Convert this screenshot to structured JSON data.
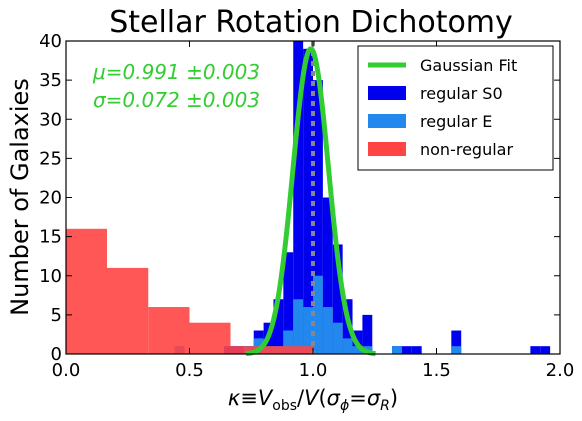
{
  "chart_data": {
    "type": "histogram",
    "title": "Stellar Rotation Dichotomy",
    "xlabel": "κ ≡ V_obs/V(σ_ϕ=σ_R)",
    "ylabel": "Number of Galaxies",
    "xlim": [
      0.0,
      2.0
    ],
    "ylim": [
      0,
      40
    ],
    "xticks": [
      "0.0",
      "0.5",
      "1.0",
      "1.5",
      "2.0"
    ],
    "yticks": [
      "0",
      "5",
      "10",
      "15",
      "20",
      "25",
      "30",
      "35",
      "40"
    ],
    "grid": false,
    "legend_position": "top-right",
    "annotations": [
      "μ=0.991 ±0.003",
      "σ=0.072 ±0.003"
    ],
    "gaussian_fit": {
      "name": "Gaussian Fit",
      "mu": 0.991,
      "sigma": 0.072,
      "peak": 39,
      "color": "#33cc33"
    },
    "reference_line": {
      "x": 1.0,
      "style": "dotted",
      "color": "#888888"
    },
    "series": [
      {
        "name": "regular S0",
        "color": "#0000ee",
        "bins": [
          {
            "x0": 0.44,
            "x1": 0.48,
            "y": 1
          },
          {
            "x0": 0.64,
            "x1": 0.68,
            "y": 1
          },
          {
            "x0": 0.68,
            "x1": 0.72,
            "y": 1
          },
          {
            "x0": 0.72,
            "x1": 0.76,
            "y": 1
          },
          {
            "x0": 0.76,
            "x1": 0.8,
            "y": 3
          },
          {
            "x0": 0.8,
            "x1": 0.84,
            "y": 4
          },
          {
            "x0": 0.84,
            "x1": 0.88,
            "y": 7
          },
          {
            "x0": 0.88,
            "x1": 0.92,
            "y": 13
          },
          {
            "x0": 0.92,
            "x1": 0.96,
            "y": 40
          },
          {
            "x0": 0.96,
            "x1": 1.0,
            "y": 39
          },
          {
            "x0": 1.0,
            "x1": 1.04,
            "y": 35
          },
          {
            "x0": 1.04,
            "x1": 1.08,
            "y": 20
          },
          {
            "x0": 1.08,
            "x1": 1.12,
            "y": 14
          },
          {
            "x0": 1.12,
            "x1": 1.16,
            "y": 7
          },
          {
            "x0": 1.16,
            "x1": 1.2,
            "y": 3
          },
          {
            "x0": 1.2,
            "x1": 1.24,
            "y": 5
          },
          {
            "x0": 1.32,
            "x1": 1.36,
            "y": 1
          },
          {
            "x0": 1.36,
            "x1": 1.4,
            "y": 1
          },
          {
            "x0": 1.4,
            "x1": 1.44,
            "y": 1
          },
          {
            "x0": 1.56,
            "x1": 1.6,
            "y": 3
          },
          {
            "x0": 1.88,
            "x1": 1.92,
            "y": 1
          },
          {
            "x0": 1.92,
            "x1": 1.96,
            "y": 1
          }
        ]
      },
      {
        "name": "regular E",
        "color": "#2288ee",
        "bins": [
          {
            "x0": 0.44,
            "x1": 0.48,
            "y": 1
          },
          {
            "x0": 0.72,
            "x1": 0.76,
            "y": 1
          },
          {
            "x0": 0.76,
            "x1": 0.8,
            "y": 2
          },
          {
            "x0": 0.8,
            "x1": 0.84,
            "y": 1
          },
          {
            "x0": 0.84,
            "x1": 0.88,
            "y": 1
          },
          {
            "x0": 0.88,
            "x1": 0.92,
            "y": 3
          },
          {
            "x0": 0.92,
            "x1": 0.96,
            "y": 7
          },
          {
            "x0": 0.96,
            "x1": 1.0,
            "y": 6
          },
          {
            "x0": 1.0,
            "x1": 1.04,
            "y": 10
          },
          {
            "x0": 1.04,
            "x1": 1.08,
            "y": 6
          },
          {
            "x0": 1.08,
            "x1": 1.12,
            "y": 4
          },
          {
            "x0": 1.12,
            "x1": 1.16,
            "y": 2
          },
          {
            "x0": 1.16,
            "x1": 1.2,
            "y": 1
          },
          {
            "x0": 1.2,
            "x1": 1.24,
            "y": 1
          },
          {
            "x0": 1.32,
            "x1": 1.36,
            "y": 1
          },
          {
            "x0": 1.56,
            "x1": 1.6,
            "y": 1
          }
        ]
      },
      {
        "name": "non-regular",
        "color": "#ff4444",
        "opacity": 0.9,
        "bins": [
          {
            "x0": 0.0,
            "x1": 0.166,
            "y": 16
          },
          {
            "x0": 0.166,
            "x1": 0.333,
            "y": 11
          },
          {
            "x0": 0.333,
            "x1": 0.5,
            "y": 6
          },
          {
            "x0": 0.5,
            "x1": 0.666,
            "y": 4
          },
          {
            "x0": 0.666,
            "x1": 0.833,
            "y": 1
          },
          {
            "x0": 0.833,
            "x1": 1.0,
            "y": 1
          }
        ]
      }
    ]
  }
}
